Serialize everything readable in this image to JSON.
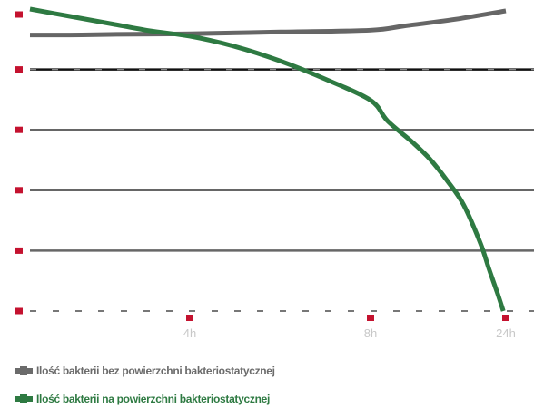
{
  "chart_data": {
    "type": "line",
    "title": "",
    "xlabel": "",
    "ylabel": "",
    "x_ticks": [
      "4h",
      "8h",
      "24h"
    ],
    "x_tick_positions": [
      4,
      8,
      24
    ],
    "xlim": [
      0,
      24
    ],
    "ylim": [
      0,
      5
    ],
    "y_gridlines": [
      1,
      2,
      3,
      4
    ],
    "grid": true,
    "legend_placement": "bottom-left",
    "series": [
      {
        "name": "Ilość bakterii bez powierzchni bakteriostatycznej",
        "color": "#666666",
        "points": [
          {
            "x": 0,
            "y": 4.57
          },
          {
            "x": 1,
            "y": 4.57
          },
          {
            "x": 2,
            "y": 4.58
          },
          {
            "x": 4,
            "y": 4.59
          },
          {
            "x": 6,
            "y": 4.62
          },
          {
            "x": 8,
            "y": 4.65
          },
          {
            "x": 12,
            "y": 4.72
          },
          {
            "x": 18,
            "y": 4.83
          },
          {
            "x": 24,
            "y": 4.97
          }
        ]
      },
      {
        "name": "Ilość bakterii na powierzchni bakteriostatycznej",
        "color": "#2e7a42",
        "points": [
          {
            "x": 0,
            "y": 5.0
          },
          {
            "x": 1,
            "y": 4.88
          },
          {
            "x": 2,
            "y": 4.76
          },
          {
            "x": 3,
            "y": 4.64
          },
          {
            "x": 4,
            "y": 4.55
          },
          {
            "x": 5,
            "y": 4.38
          },
          {
            "x": 6,
            "y": 4.14
          },
          {
            "x": 7,
            "y": 3.84
          },
          {
            "x": 8,
            "y": 3.49
          },
          {
            "x": 10,
            "y": 3.15
          },
          {
            "x": 13,
            "y": 2.79
          },
          {
            "x": 15,
            "y": 2.52
          },
          {
            "x": 17,
            "y": 2.17
          },
          {
            "x": 19,
            "y": 1.76
          },
          {
            "x": 21,
            "y": 1.12
          },
          {
            "x": 22,
            "y": 0.7
          },
          {
            "x": 23,
            "y": 0.3
          },
          {
            "x": 23.7,
            "y": 0.0
          }
        ]
      }
    ]
  },
  "colors": {
    "marker": "#c4122f",
    "grid": "#666666",
    "grid_highlight": "#111111",
    "axis_dash": "#777777",
    "tick_label": "#c8c8c8"
  },
  "legend": [
    {
      "label": "Ilość bakterii bez powierzchni bakteriostatycznej",
      "icon": "legend-swatch-gray-icon"
    },
    {
      "label": "Ilość bakterii na powierzchni bakteriostatycznej",
      "icon": "legend-swatch-green-icon"
    }
  ]
}
